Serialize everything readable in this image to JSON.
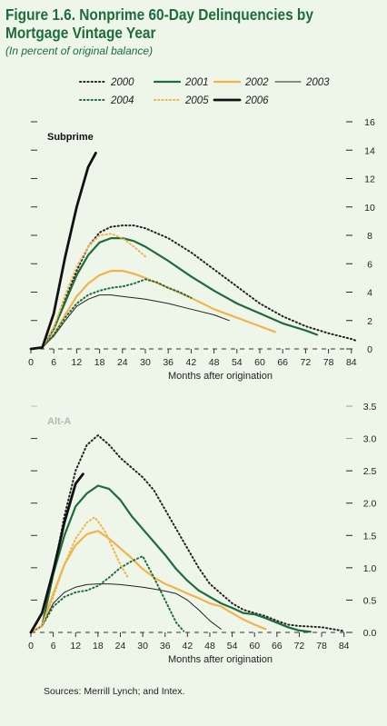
{
  "figure": {
    "title": "Figure 1.6. Nonprime 60-Day Delinquencies by Mortgage Vintage Year",
    "title_line1": "Figure 1.6. Nonprime 60-Day Delinquencies by",
    "title_line2": "Mortgage Vintage Year",
    "subtitle": "(In percent of original balance)",
    "source": "Sources: Merrill Lynch; and Intex."
  },
  "legend": [
    {
      "year": "2000",
      "color": "#222222",
      "style": "dotted"
    },
    {
      "year": "2001",
      "color": "#1e6b3c",
      "style": "solid"
    },
    {
      "year": "2002",
      "color": "#f2b34a",
      "style": "solid"
    },
    {
      "year": "2003",
      "color": "#222222",
      "style": "thin"
    },
    {
      "year": "2004",
      "color": "#1e6b3c",
      "style": "dotted"
    },
    {
      "year": "2005",
      "color": "#f2b34a",
      "style": "dotted"
    },
    {
      "year": "2006",
      "color": "#111111",
      "style": "thick"
    }
  ],
  "chart_data": [
    {
      "type": "line",
      "panel_label": "Subprime",
      "xlabel": "Months after origination",
      "ylabel": "",
      "xlim": [
        0,
        85
      ],
      "ylim": [
        0,
        16
      ],
      "xticks": [
        0,
        6,
        12,
        18,
        24,
        30,
        36,
        42,
        48,
        54,
        60,
        66,
        72,
        78,
        84
      ],
      "yticks": [
        0,
        2,
        4,
        6,
        8,
        10,
        12,
        14,
        16
      ],
      "series": [
        {
          "name": "2000",
          "x": [
            0,
            3,
            6,
            9,
            12,
            15,
            18,
            21,
            24,
            27,
            30,
            36,
            42,
            48,
            54,
            60,
            66,
            72,
            78,
            84,
            85
          ],
          "y": [
            0,
            0.1,
            1.5,
            3.5,
            5.5,
            7.2,
            8.2,
            8.6,
            8.7,
            8.7,
            8.5,
            7.8,
            6.8,
            5.6,
            4.4,
            3.2,
            2.3,
            1.6,
            1.1,
            0.7,
            0.6
          ]
        },
        {
          "name": "2001",
          "x": [
            0,
            3,
            6,
            9,
            12,
            15,
            18,
            21,
            24,
            27,
            30,
            36,
            42,
            48,
            54,
            60,
            66,
            72,
            75
          ],
          "y": [
            0,
            0.1,
            1.4,
            3.3,
            5.2,
            6.6,
            7.5,
            7.8,
            7.8,
            7.6,
            7.2,
            6.2,
            5.1,
            4.1,
            3.2,
            2.5,
            1.8,
            1.3,
            1.0
          ]
        },
        {
          "name": "2002",
          "x": [
            0,
            3,
            6,
            9,
            12,
            15,
            18,
            21,
            24,
            27,
            30,
            36,
            42,
            48,
            54,
            60,
            64
          ],
          "y": [
            0,
            0.1,
            1.0,
            2.4,
            3.7,
            4.6,
            5.2,
            5.5,
            5.5,
            5.3,
            5.0,
            4.3,
            3.6,
            2.8,
            2.2,
            1.6,
            1.2
          ]
        },
        {
          "name": "2003",
          "x": [
            0,
            3,
            6,
            9,
            12,
            15,
            18,
            21,
            24,
            27,
            30,
            36,
            42,
            48,
            52
          ],
          "y": [
            0,
            0.1,
            0.9,
            2.0,
            3.0,
            3.5,
            3.8,
            3.8,
            3.7,
            3.6,
            3.5,
            3.2,
            2.8,
            2.4,
            2.0
          ]
        },
        {
          "name": "2004",
          "x": [
            0,
            3,
            6,
            9,
            12,
            15,
            18,
            21,
            24,
            27,
            30,
            33,
            36,
            39,
            42
          ],
          "y": [
            0,
            0.1,
            1.0,
            2.2,
            3.2,
            3.8,
            4.1,
            4.3,
            4.4,
            4.6,
            4.9,
            4.7,
            4.3,
            4.0,
            3.6
          ]
        },
        {
          "name": "2005",
          "x": [
            0,
            3,
            6,
            9,
            12,
            15,
            18,
            21,
            24,
            27,
            30
          ],
          "y": [
            0,
            0.1,
            1.5,
            3.8,
            5.8,
            7.2,
            8.0,
            8.1,
            7.8,
            7.2,
            6.5
          ]
        },
        {
          "name": "2006",
          "x": [
            0,
            3,
            6,
            9,
            12,
            15,
            17
          ],
          "y": [
            0,
            0.1,
            2.5,
            6.5,
            10.0,
            12.8,
            13.8
          ]
        }
      ]
    },
    {
      "type": "line",
      "panel_label": "Alt-A",
      "xlabel": "Months after origination",
      "ylabel": "",
      "xlim": [
        0,
        87
      ],
      "ylim": [
        0,
        3.5
      ],
      "xticks": [
        0,
        6,
        12,
        18,
        24,
        30,
        36,
        42,
        48,
        54,
        60,
        66,
        72,
        78,
        84
      ],
      "yticks": [
        0,
        0.5,
        1.0,
        1.5,
        2.0,
        2.5,
        3.0,
        3.5
      ],
      "series": [
        {
          "name": "2000",
          "x": [
            0,
            3,
            6,
            9,
            12,
            15,
            18,
            21,
            24,
            27,
            30,
            33,
            36,
            39,
            42,
            45,
            48,
            51,
            54,
            57,
            60,
            63,
            66,
            69,
            72,
            75,
            78,
            81,
            84
          ],
          "y": [
            0,
            0.1,
            0.9,
            1.8,
            2.5,
            2.9,
            3.05,
            2.9,
            2.7,
            2.55,
            2.4,
            2.2,
            1.9,
            1.6,
            1.3,
            1.0,
            0.75,
            0.6,
            0.45,
            0.35,
            0.3,
            0.25,
            0.18,
            0.12,
            0.1,
            0.09,
            0.08,
            0.05,
            0.02
          ]
        },
        {
          "name": "2001",
          "x": [
            0,
            3,
            6,
            9,
            12,
            15,
            18,
            21,
            24,
            27,
            30,
            33,
            36,
            39,
            42,
            45,
            48,
            51,
            54,
            57,
            60,
            63,
            66,
            69,
            72,
            75
          ],
          "y": [
            0,
            0.1,
            0.9,
            1.5,
            1.95,
            2.15,
            2.27,
            2.22,
            2.05,
            1.8,
            1.6,
            1.4,
            1.2,
            0.98,
            0.8,
            0.65,
            0.55,
            0.45,
            0.38,
            0.3,
            0.28,
            0.22,
            0.15,
            0.08,
            0.03,
            0.01
          ]
        },
        {
          "name": "2002",
          "x": [
            0,
            3,
            6,
            9,
            12,
            15,
            18,
            21,
            24,
            27,
            30,
            33,
            36,
            39,
            42,
            45,
            48,
            51,
            54,
            57,
            60,
            63
          ],
          "y": [
            0,
            0.1,
            0.6,
            1.05,
            1.35,
            1.52,
            1.57,
            1.45,
            1.3,
            1.15,
            0.98,
            0.85,
            0.75,
            0.68,
            0.6,
            0.53,
            0.45,
            0.4,
            0.3,
            0.2,
            0.12,
            0.05
          ]
        },
        {
          "name": "2003",
          "x": [
            0,
            3,
            6,
            9,
            12,
            15,
            18,
            21,
            24,
            27,
            30,
            33,
            36,
            39,
            42,
            45,
            48,
            51
          ],
          "y": [
            0,
            0.1,
            0.45,
            0.62,
            0.7,
            0.74,
            0.75,
            0.75,
            0.74,
            0.72,
            0.7,
            0.67,
            0.64,
            0.6,
            0.5,
            0.35,
            0.18,
            0.05
          ]
        },
        {
          "name": "2004",
          "x": [
            0,
            3,
            6,
            9,
            12,
            15,
            18,
            21,
            24,
            27,
            30,
            33,
            36,
            39,
            41
          ],
          "y": [
            0,
            0.1,
            0.4,
            0.55,
            0.62,
            0.65,
            0.72,
            0.85,
            1.0,
            1.1,
            1.18,
            0.85,
            0.5,
            0.15,
            0.02
          ]
        },
        {
          "name": "2005",
          "x": [
            0,
            3,
            6,
            9,
            12,
            15,
            17,
            18,
            20,
            22,
            24,
            26
          ],
          "y": [
            0,
            0.1,
            0.55,
            1.05,
            1.45,
            1.7,
            1.78,
            1.72,
            1.55,
            1.3,
            1.05,
            0.85
          ]
        },
        {
          "name": "2006",
          "x": [
            0,
            3,
            6,
            9,
            12,
            14
          ],
          "y": [
            0,
            0.3,
            0.95,
            1.7,
            2.3,
            2.45
          ]
        }
      ]
    }
  ]
}
